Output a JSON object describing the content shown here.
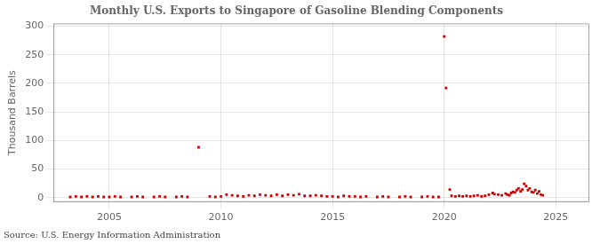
{
  "chart_data": {
    "type": "scatter",
    "title": "Monthly U.S. Exports to Singapore of Gasoline Blending Components",
    "ylabel": "Thousand Barrels",
    "annotations": [
      "Source: U.S. Energy Information Administration"
    ],
    "x": [
      2003.25,
      2003.5,
      2003.75,
      2004.0,
      2004.25,
      2004.5,
      2004.75,
      2005.0,
      2005.25,
      2005.5,
      2006.0,
      2006.25,
      2006.5,
      2007.0,
      2007.25,
      2007.5,
      2008.0,
      2008.25,
      2008.5,
      2009.0,
      2009.5,
      2009.75,
      2010.0,
      2010.25,
      2010.5,
      2010.75,
      2011.0,
      2011.25,
      2011.5,
      2011.75,
      2012.0,
      2012.25,
      2012.5,
      2012.75,
      2013.0,
      2013.25,
      2013.5,
      2013.75,
      2014.0,
      2014.25,
      2014.5,
      2014.75,
      2015.0,
      2015.25,
      2015.5,
      2015.75,
      2016.0,
      2016.25,
      2016.5,
      2017.0,
      2017.25,
      2017.5,
      2018.0,
      2018.25,
      2018.5,
      2019.0,
      2019.25,
      2019.5,
      2019.75,
      2020.0,
      2020.083,
      2020.25,
      2020.33,
      2020.5,
      2020.67,
      2020.83,
      2021.0,
      2021.17,
      2021.33,
      2021.5,
      2021.67,
      2021.83,
      2022.0,
      2022.17,
      2022.25,
      2022.42,
      2022.58,
      2022.75,
      2022.83,
      2022.92,
      2023.0,
      2023.08,
      2023.17,
      2023.25,
      2023.33,
      2023.42,
      2023.5,
      2023.58,
      2023.67,
      2023.75,
      2023.83,
      2023.92,
      2024.0,
      2024.08,
      2024.17,
      2024.25,
      2024.33,
      2024.42
    ],
    "values": [
      1,
      2,
      1,
      2,
      1,
      2,
      1,
      1,
      2,
      1,
      1,
      2,
      1,
      1,
      2,
      1,
      1,
      2,
      1,
      88,
      2,
      1,
      2,
      5,
      4,
      3,
      2,
      4,
      3,
      5,
      4,
      3,
      5,
      3,
      5,
      4,
      6,
      3,
      3,
      4,
      3,
      2,
      2,
      1,
      3,
      2,
      2,
      1,
      2,
      1,
      2,
      1,
      1,
      2,
      1,
      1,
      2,
      1,
      1,
      282,
      192,
      14,
      3,
      2,
      3,
      2,
      3,
      2,
      3,
      4,
      2,
      3,
      5,
      8,
      6,
      5,
      4,
      7,
      5,
      4,
      8,
      10,
      9,
      13,
      16,
      11,
      14,
      24,
      20,
      13,
      16,
      10,
      9,
      13,
      7,
      11,
      5,
      4
    ],
    "color": "#cc0000",
    "marker": "square",
    "xlim": [
      2002.5,
      2026.5
    ],
    "xticks": [
      2005,
      2010,
      2015,
      2020,
      2025
    ],
    "ylim": [
      -8,
      305
    ],
    "yticks": [
      0,
      50,
      100,
      150,
      200,
      250,
      300
    ],
    "grid": true
  }
}
